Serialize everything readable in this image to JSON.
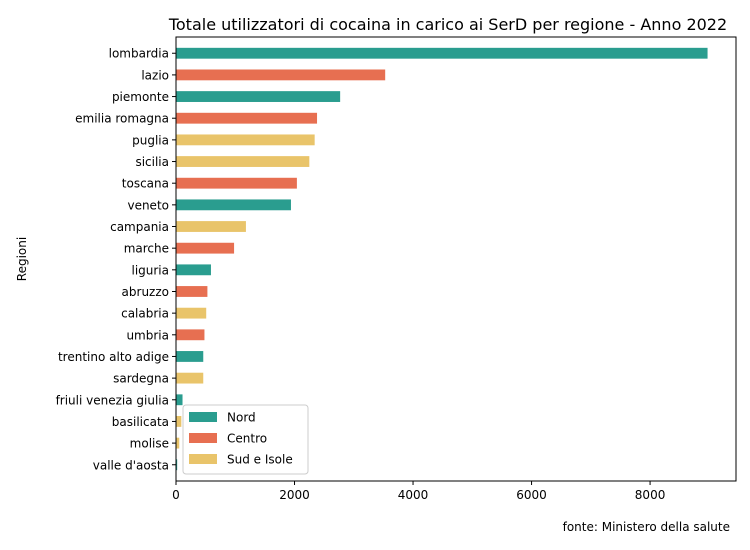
{
  "chart_data": {
    "type": "bar",
    "orientation": "horizontal",
    "title": "Totale utilizzatori di cocaina in carico ai SerD per regione - Anno 2022",
    "xlabel": "",
    "ylabel": "Regioni",
    "xlim": [
      0,
      9450
    ],
    "xticks": [
      "0",
      "2000",
      "4000",
      "6000",
      "8000"
    ],
    "grid": false,
    "legend_position": "lower-left",
    "source_note": "fonte: Ministero della salute",
    "groups": [
      {
        "name": "Nord",
        "color": "#2a9d8f"
      },
      {
        "name": "Centro",
        "color": "#e76f51"
      },
      {
        "name": "Sud e Isole",
        "color": "#e9c46a"
      }
    ],
    "categories": [
      "lombardia",
      "lazio",
      "piemonte",
      "emilia romagna",
      "puglia",
      "sicilia",
      "toscana",
      "veneto",
      "campania",
      "marche",
      "liguria",
      "abruzzo",
      "calabria",
      "umbria",
      "trentino alto adige",
      "sardegna",
      "friuli venezia giulia",
      "basilicata",
      "molise",
      "valle d'aosta"
    ],
    "values": [
      8970,
      3530,
      2770,
      2380,
      2340,
      2250,
      2040,
      1940,
      1180,
      980,
      590,
      530,
      510,
      480,
      460,
      460,
      110,
      90,
      55,
      20
    ],
    "value_groups": [
      "Nord",
      "Centro",
      "Nord",
      "Centro",
      "Sud e Isole",
      "Sud e Isole",
      "Centro",
      "Nord",
      "Sud e Isole",
      "Centro",
      "Nord",
      "Centro",
      "Sud e Isole",
      "Centro",
      "Nord",
      "Sud e Isole",
      "Nord",
      "Sud e Isole",
      "Sud e Isole",
      "Nord"
    ]
  }
}
